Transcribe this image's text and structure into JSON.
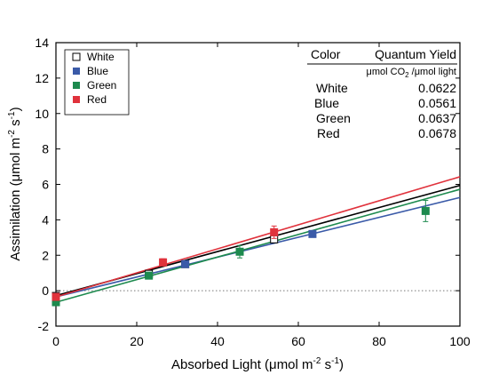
{
  "chart_data": {
    "type": "scatter",
    "xlabel": "Absorbed Light (",
    "xlabel_unit": "μmol m",
    "xlabel_exp1": "-2",
    "xlabel_mid": " s",
    "xlabel_exp2": "-1",
    "xlabel_close": ")",
    "ylabel": "Assimilation (μmol m",
    "ylabel_exp1": "-2",
    "ylabel_mid": " s",
    "ylabel_exp2": "-1",
    "ylabel_close": ")",
    "xlim": [
      0,
      100
    ],
    "ylim": [
      -2,
      14
    ],
    "xticks": [
      0,
      20,
      40,
      60,
      80,
      100
    ],
    "yticks": [
      -2,
      0,
      2,
      4,
      6,
      8,
      10,
      12,
      14
    ],
    "zero_line": "dotted",
    "legend_position": "top-left",
    "series": [
      {
        "name": "White",
        "color": "#000000",
        "marker": "open-square",
        "points": [
          {
            "x": 0,
            "y": -0.3,
            "err": 0.1
          },
          {
            "x": 23,
            "y": 0.95,
            "err": 0.08
          },
          {
            "x": 32,
            "y": 1.5,
            "err": 0.1
          },
          {
            "x": 54,
            "y": 2.9,
            "err": 0.2
          }
        ],
        "line": {
          "x": [
            0,
            100
          ],
          "y": [
            -0.28,
            5.94
          ]
        }
      },
      {
        "name": "Blue",
        "color": "#3a5aa8",
        "marker": "square",
        "points": [
          {
            "x": 0,
            "y": -0.35,
            "err": 0.1
          },
          {
            "x": 32,
            "y": 1.5,
            "err": 0.1
          },
          {
            "x": 63.5,
            "y": 3.2,
            "err": 0.15
          }
        ],
        "line": {
          "x": [
            0,
            100
          ],
          "y": [
            -0.35,
            5.26
          ]
        }
      },
      {
        "name": "Green",
        "color": "#1d8a4e",
        "marker": "square",
        "points": [
          {
            "x": 0,
            "y": -0.65,
            "err": 0.1
          },
          {
            "x": 23,
            "y": 0.85,
            "err": 0.1
          },
          {
            "x": 45.5,
            "y": 2.2,
            "err": 0.35
          },
          {
            "x": 91.5,
            "y": 4.5,
            "err": 0.6
          }
        ],
        "line": {
          "x": [
            0,
            100
          ],
          "y": [
            -0.65,
            5.72
          ]
        }
      },
      {
        "name": "Red",
        "color": "#e0323c",
        "marker": "square",
        "points": [
          {
            "x": 0,
            "y": -0.35,
            "err": 0.1
          },
          {
            "x": 26.5,
            "y": 1.6,
            "err": 0.2
          },
          {
            "x": 54,
            "y": 3.3,
            "err": 0.35
          }
        ],
        "line": {
          "x": [
            0,
            100
          ],
          "y": [
            -0.35,
            6.43
          ]
        }
      }
    ],
    "yield_table": {
      "header_color": "Color",
      "header_yield": "Quantum Yield",
      "unit_prefix": "μmol CO",
      "unit_sub": "2",
      "unit_suffix": " /μmol light",
      "rows": [
        {
          "color": "White",
          "value": "0.0622"
        },
        {
          "color": "Blue",
          "value": "0.0561"
        },
        {
          "color": "Green",
          "value": "0.0637"
        },
        {
          "color": "Red",
          "value": "0.0678"
        }
      ]
    }
  }
}
